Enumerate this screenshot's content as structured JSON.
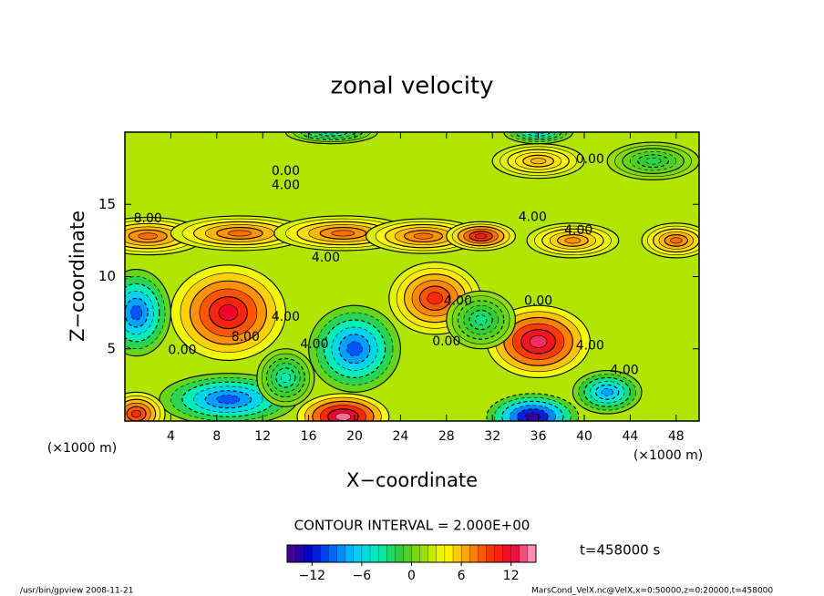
{
  "chart_data": {
    "type": "contour",
    "title": "zonal velocity",
    "xlabel": "X−coordinate",
    "ylabel": "Z−coordinate",
    "x_unit": "(×1000 m)",
    "y_unit": "(×1000 m)",
    "xlim": [
      0,
      50
    ],
    "ylim": [
      0,
      20
    ],
    "xticks": [
      4,
      8,
      12,
      16,
      20,
      24,
      28,
      32,
      36,
      40,
      44,
      48
    ],
    "yticks": [
      5,
      10,
      15
    ],
    "clim": [
      -15,
      15
    ],
    "cticks": [
      {
        "value": -12,
        "label": "−12"
      },
      {
        "value": -6,
        "label": "−6"
      },
      0,
      6,
      12
    ],
    "colormap": [
      "#550088",
      "#0000cc",
      "#0066ff",
      "#00ccff",
      "#00eebb",
      "#33cc33",
      "#99dd00",
      "#ffff00",
      "#ff9900",
      "#ff3300",
      "#ee0033",
      "#ffaacc"
    ],
    "base_value": 2,
    "extrema": [
      {
        "x": 2,
        "y": 12.8,
        "value": 8,
        "extent": [
          5,
          1.3
        ]
      },
      {
        "x": 10,
        "y": 13,
        "value": 8,
        "extent": [
          6,
          1.2
        ]
      },
      {
        "x": 19,
        "y": 13,
        "value": 8,
        "extent": [
          6,
          1.2
        ]
      },
      {
        "x": 26,
        "y": 12.8,
        "value": 8,
        "extent": [
          5,
          1.2
        ]
      },
      {
        "x": 31,
        "y": 12.8,
        "value": 11,
        "extent": [
          3,
          1
        ]
      },
      {
        "x": 39,
        "y": 12.5,
        "value": 7,
        "extent": [
          4,
          1.2
        ]
      },
      {
        "x": 48,
        "y": 12.5,
        "value": 8,
        "extent": [
          3,
          1.2
        ]
      },
      {
        "x": 9,
        "y": 7.5,
        "value": 12,
        "extent": [
          5,
          3.3
        ]
      },
      {
        "x": 27,
        "y": 8.5,
        "value": 10,
        "extent": [
          4,
          2.5
        ]
      },
      {
        "x": 36,
        "y": 5.5,
        "value": 13,
        "extent": [
          4.5,
          2.5
        ]
      },
      {
        "x": 1,
        "y": 7.5,
        "value": -10,
        "extent": [
          3,
          3
        ]
      },
      {
        "x": 20,
        "y": 5,
        "value": -10,
        "extent": [
          4,
          3
        ]
      },
      {
        "x": 9,
        "y": 1.5,
        "value": -10,
        "extent": [
          6,
          1.8
        ]
      },
      {
        "x": 35.5,
        "y": 0.3,
        "value": -14,
        "extent": [
          4,
          1.6
        ]
      },
      {
        "x": 19,
        "y": 0.3,
        "value": 14,
        "extent": [
          4,
          1.6
        ]
      },
      {
        "x": 1,
        "y": 0.5,
        "value": 10,
        "extent": [
          2.5,
          1.5
        ]
      },
      {
        "x": 42,
        "y": 2,
        "value": -8,
        "extent": [
          3,
          1.5
        ]
      },
      {
        "x": 36,
        "y": 18,
        "value": 6,
        "extent": [
          4,
          1.2
        ]
      },
      {
        "x": 36,
        "y": 20,
        "value": -6,
        "extent": [
          3,
          0.8
        ]
      },
      {
        "x": 18,
        "y": 20,
        "value": -4,
        "extent": [
          4,
          0.8
        ]
      },
      {
        "x": 31,
        "y": 7,
        "value": -3,
        "extent": [
          3,
          2
        ]
      },
      {
        "x": 14,
        "y": 3,
        "value": -4,
        "extent": [
          2.5,
          2
        ]
      },
      {
        "x": 46,
        "y": 18,
        "value": -2,
        "extent": [
          4,
          1.3
        ]
      }
    ],
    "contour_labels": [
      {
        "text": "0.00",
        "x": 14,
        "y": 17.3
      },
      {
        "text": "4.00",
        "x": 14,
        "y": 16.3
      },
      {
        "text": "8.00",
        "x": 2,
        "y": 14
      },
      {
        "text": "4.00",
        "x": 17.5,
        "y": 11.3
      },
      {
        "text": "4.00",
        "x": 35.5,
        "y": 14.1
      },
      {
        "text": "4.00",
        "x": 39.5,
        "y": 13.2
      },
      {
        "text": "0.00",
        "x": 40.5,
        "y": 18.1
      },
      {
        "text": "8.00",
        "x": 10.5,
        "y": 5.8
      },
      {
        "text": "4.00",
        "x": 14,
        "y": 7.2
      },
      {
        "text": "4.00",
        "x": 16.5,
        "y": 5.3
      },
      {
        "text": "0.00",
        "x": 5,
        "y": 4.9
      },
      {
        "text": "4.00",
        "x": 29,
        "y": 8.3
      },
      {
        "text": "0.00",
        "x": 28,
        "y": 5.5
      },
      {
        "text": "0.00",
        "x": 36,
        "y": 8.3
      },
      {
        "text": "4.00",
        "x": 40.5,
        "y": 5.2
      },
      {
        "text": "4.00",
        "x": 43.5,
        "y": 3.5
      }
    ],
    "contour_interval": "CONTOUR INTERVAL = 2.000E+00",
    "time": "t=458000 s",
    "footer_left": "/usr/bin/gpview  2008-11-21",
    "footer_right": "MarsCond_VelX.nc@VelX,x=0:50000,z=0:20000,t=458000"
  }
}
